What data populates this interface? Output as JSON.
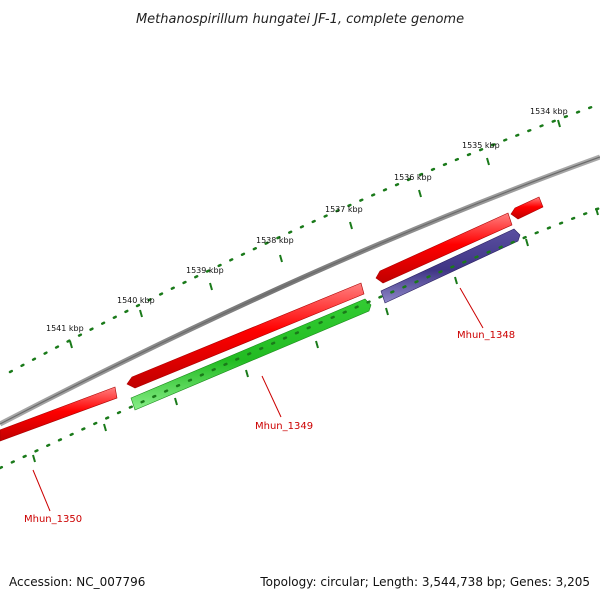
{
  "title": "Methanospirillum hungatei JF-1, complete genome",
  "footer": {
    "accession": "Accession: NC_007796",
    "topology": "Topology: circular; Length: 3,544,738 bp; Genes: 3,205"
  },
  "ruler_labels": [
    "1541 kbp",
    "1540 kbp",
    "1539 kbp",
    "1538 kbp",
    "1537 kbp",
    "1536 kbp",
    "1535 kbp",
    "1534 kbp"
  ],
  "genes": [
    {
      "name": "Mhun_1350",
      "strand": "forward",
      "color": "#ff0000"
    },
    {
      "name": "Mhun_1349",
      "strand": "reverse",
      "color": "#33cc33"
    },
    {
      "name": "Mhun_1348",
      "strand": "reverse",
      "color": "#4a3f8c"
    }
  ],
  "colors": {
    "backbone": "#808080",
    "tick": "#1a7a1a",
    "forward_gene": "#ff0000",
    "label": "#cc0000"
  }
}
